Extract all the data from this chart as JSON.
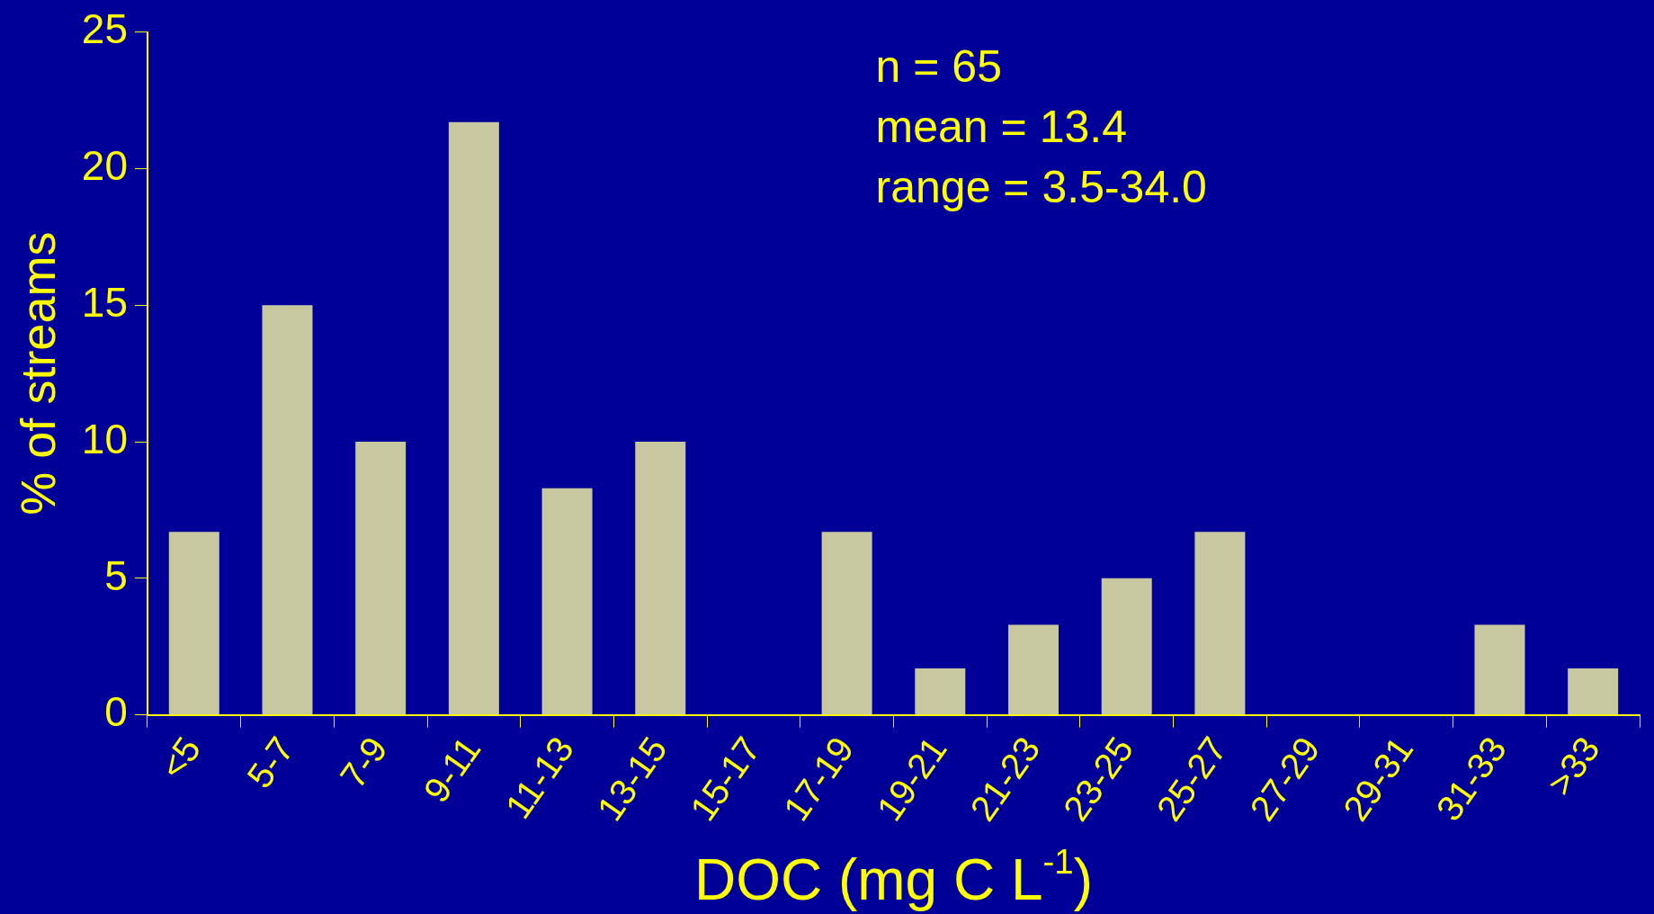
{
  "chart_data": {
    "type": "bar",
    "xlabel": "DOC (mg C L$^{-1}$)",
    "ylabel": "% of streams",
    "categories": [
      "<5",
      "5-7",
      "7-9",
      "9-11",
      "11-13",
      "13-15",
      "15-17",
      "17-19",
      "19-21",
      "21-23",
      "23-25",
      "25-27",
      "27-29",
      "29-31",
      "31-33",
      ">33"
    ],
    "values": [
      6.7,
      15,
      10,
      21.7,
      8.3,
      10,
      0,
      6.7,
      1.7,
      3.3,
      5,
      6.7,
      0,
      0,
      3.3,
      1.7
    ],
    "color": "#c8c8a0",
    "ylim": [
      0,
      25
    ],
    "yticks": [
      0,
      5,
      10,
      15,
      20,
      25
    ],
    "grid": false,
    "legend": false,
    "annotations": [
      "n = 65",
      "mean = 13.4",
      "range = 3.5-34.0"
    ]
  }
}
